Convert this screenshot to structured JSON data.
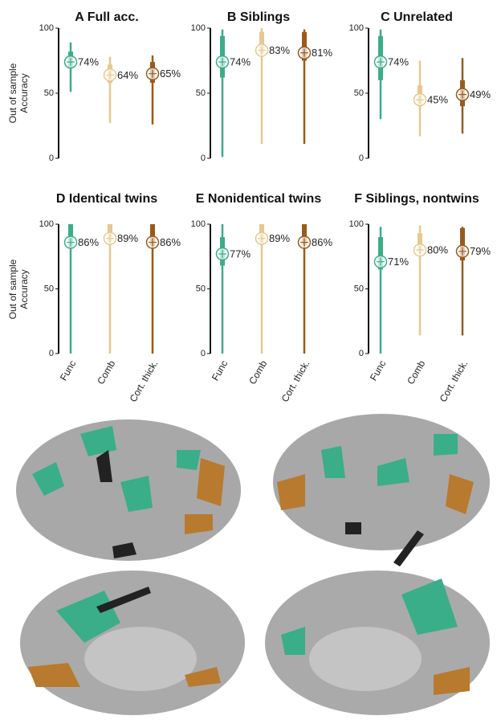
{
  "chart_data": [
    {
      "type": "box",
      "title": "A Full acc.",
      "ylabel": "Out of sample Accuracy",
      "categories": [
        null,
        null,
        null
      ],
      "values": [
        74,
        64,
        65
      ],
      "value_labels": [
        "74%",
        "64%",
        "65%"
      ],
      "low": [
        51,
        27,
        26
      ],
      "q1": [
        70,
        58,
        58
      ],
      "q3": [
        82,
        72,
        74
      ],
      "high": [
        89,
        78,
        79
      ],
      "colors": [
        "#3aae88",
        "#e6c88e",
        "#9a5a1c"
      ],
      "ylim": [
        0,
        100
      ],
      "yticks": [
        0,
        50,
        100
      ]
    },
    {
      "type": "box",
      "title": "B Siblings",
      "categories": [
        null,
        null,
        null
      ],
      "values": [
        74,
        83,
        81
      ],
      "value_labels": [
        "74%",
        "83%",
        "81%"
      ],
      "low": [
        1,
        11,
        11
      ],
      "q1": [
        62,
        80,
        75
      ],
      "q3": [
        94,
        97,
        97
      ],
      "high": [
        99,
        100,
        99
      ],
      "colors": [
        "#3aae88",
        "#e6c88e",
        "#9a5a1c"
      ],
      "ylim": [
        0,
        100
      ],
      "yticks": [
        0,
        50,
        100
      ]
    },
    {
      "type": "box",
      "title": "C Unrelated",
      "categories": [
        null,
        null,
        null
      ],
      "values": [
        74,
        45,
        49
      ],
      "value_labels": [
        "74%",
        "45%",
        "49%"
      ],
      "low": [
        30,
        17,
        19
      ],
      "q1": [
        60,
        40,
        40
      ],
      "q3": [
        94,
        56,
        60
      ],
      "high": [
        99,
        75,
        77
      ],
      "colors": [
        "#3aae88",
        "#e6c88e",
        "#9a5a1c"
      ],
      "ylim": [
        0,
        100
      ],
      "yticks": [
        0,
        50,
        100
      ]
    },
    {
      "type": "box",
      "title": "D Identical twins",
      "ylabel": "Out of sample Accuracy",
      "categories": [
        "Func",
        "Comb",
        "Cort. thick."
      ],
      "values": [
        86,
        89,
        86
      ],
      "value_labels": [
        "86%",
        "89%",
        "86%"
      ],
      "low": [
        0,
        0,
        0
      ],
      "q1": [
        82,
        86,
        83
      ],
      "q3": [
        100,
        100,
        100
      ],
      "high": [
        100,
        100,
        100
      ],
      "colors": [
        "#3aae88",
        "#e6c88e",
        "#9a5a1c"
      ],
      "ylim": [
        0,
        100
      ],
      "yticks": [
        0,
        50,
        100
      ]
    },
    {
      "type": "box",
      "title": "E Nonidentical twins",
      "categories": [
        "Func",
        "Comb",
        "Cort. thick."
      ],
      "values": [
        77,
        89,
        86
      ],
      "value_labels": [
        "77%",
        "89%",
        "86%"
      ],
      "low": [
        0,
        0,
        0
      ],
      "q1": [
        68,
        84,
        84
      ],
      "q3": [
        90,
        100,
        100
      ],
      "high": [
        100,
        100,
        100
      ],
      "colors": [
        "#3aae88",
        "#e6c88e",
        "#9a5a1c"
      ],
      "ylim": [
        0,
        100
      ],
      "yticks": [
        0,
        50,
        100
      ]
    },
    {
      "type": "box",
      "title": "F Siblings, nontwins",
      "categories": [
        "Func",
        "Comb",
        "Cort. thick."
      ],
      "values": [
        71,
        80,
        79
      ],
      "value_labels": [
        "71%",
        "80%",
        "79%"
      ],
      "low": [
        0,
        14,
        14
      ],
      "q1": [
        65,
        78,
        72
      ],
      "q3": [
        90,
        93,
        97
      ],
      "high": [
        98,
        99,
        98
      ],
      "colors": [
        "#3aae88",
        "#e6c88e",
        "#9a5a1c"
      ],
      "ylim": [
        0,
        100
      ],
      "yticks": [
        0,
        50,
        100
      ]
    }
  ]
}
